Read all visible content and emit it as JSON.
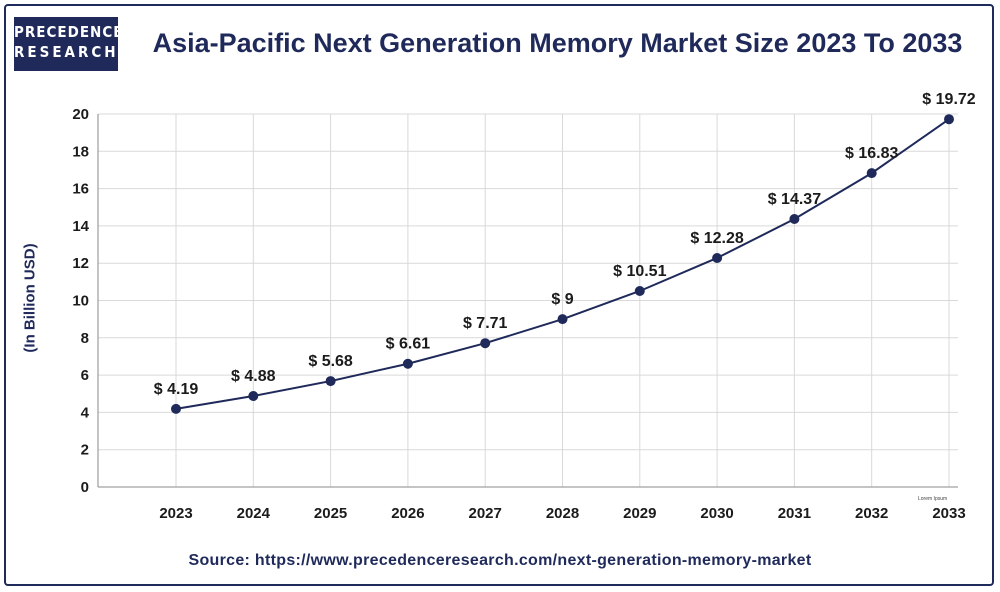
{
  "brand": {
    "line1": "PRECEDENCE",
    "line2": "RESEARCH"
  },
  "header": {
    "title": "Asia-Pacific Next Generation Memory Market Size 2023 To 2033"
  },
  "footer": {
    "source": "Source: https://www.precedenceresearch.com/next-generation-memory-market"
  },
  "chart_data": {
    "type": "line",
    "title": "Asia-Pacific Next Generation Memory Market Size 2023 To 2033",
    "xlabel": "",
    "ylabel": "(In Billion USD)",
    "categories": [
      "2023",
      "2024",
      "2025",
      "2026",
      "2027",
      "2028",
      "2029",
      "2030",
      "2031",
      "2032",
      "2033"
    ],
    "series": [
      {
        "values": [
          4.19,
          4.88,
          5.68,
          6.61,
          7.71,
          9,
          10.51,
          12.28,
          14.37,
          16.83,
          19.72
        ]
      }
    ],
    "data_labels": [
      "$ 4.19",
      "$ 4.88",
      "$ 5.68",
      "$ 6.61",
      "$ 7.71",
      "$ 9",
      "$ 10.51",
      "$ 12.28",
      "$ 14.37",
      "$ 16.83",
      "$ 19.72"
    ],
    "yticks": [
      0,
      2,
      4,
      6,
      8,
      10,
      12,
      14,
      16,
      18,
      20
    ],
    "ylim": [
      0,
      20
    ],
    "grid": true,
    "line_color": "#1f2a5a",
    "annotation": "Lorem Ipsum"
  }
}
